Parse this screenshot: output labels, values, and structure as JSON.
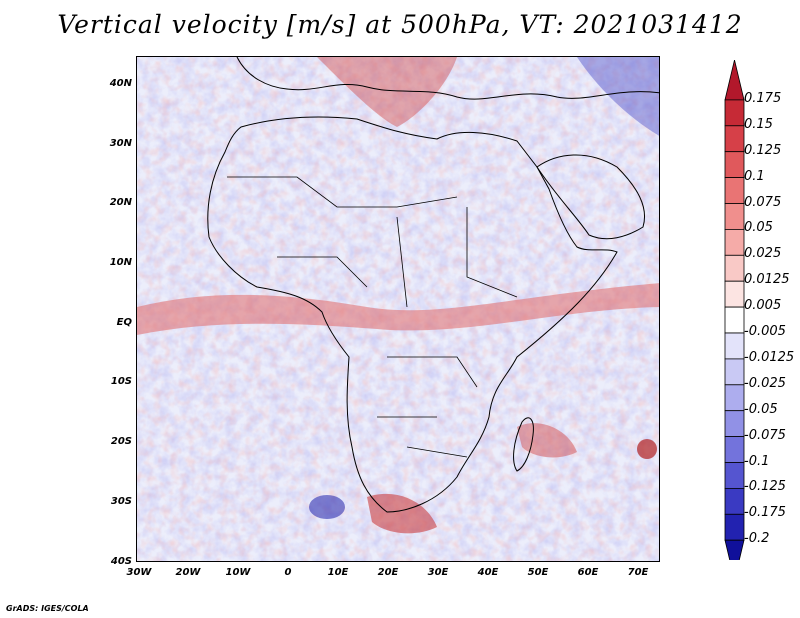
{
  "title": "Vertical velocity [m/s] at 500hPa, VT: 2021031412",
  "credit": "GrADS: IGES/COLA",
  "map": {
    "projection": "lat-lon",
    "region": "Africa",
    "lon_range": [
      -30,
      75
    ],
    "lat_range": [
      -40,
      45
    ],
    "x_ticks": [
      "30W",
      "20W",
      "10W",
      "0",
      "10E",
      "20E",
      "30E",
      "40E",
      "50E",
      "60E",
      "70E"
    ],
    "y_ticks": [
      "40N",
      "30N",
      "20N",
      "10N",
      "EQ",
      "10S",
      "20S",
      "30S",
      "40S"
    ]
  },
  "colorbar": {
    "labels": [
      "0.175",
      "0.15",
      "0.125",
      "0.1",
      "0.075",
      "0.05",
      "0.025",
      "0.0125",
      "0.005",
      "-0.005",
      "-0.0125",
      "-0.025",
      "-0.05",
      "-0.075",
      "-0.1",
      "-0.125",
      "-0.175",
      "-0.2"
    ],
    "colors": [
      "#b2182b",
      "#c62a36",
      "#d64048",
      "#e0595c",
      "#e97474",
      "#f08f8d",
      "#f5aba8",
      "#f9c9c6",
      "#fce4e2",
      "#ffffff",
      "#e3e3fa",
      "#c9c9f4",
      "#adadee",
      "#9191e6",
      "#7373dc",
      "#5555d0",
      "#3a3ac2",
      "#2222b0",
      "#10109a"
    ]
  }
}
